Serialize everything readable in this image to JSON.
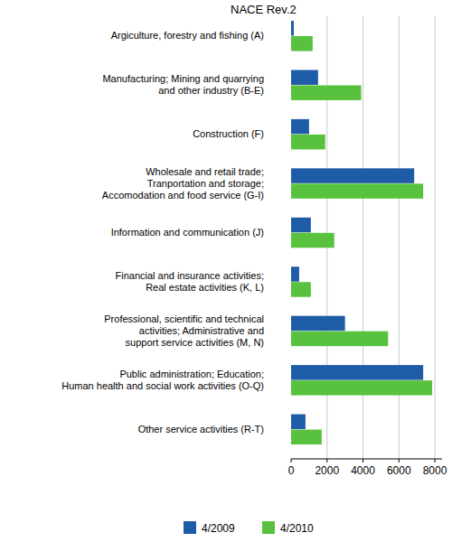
{
  "chart_data": {
    "type": "bar",
    "orientation": "horizontal",
    "ylabel": "NACE Rev.2",
    "categories": [
      "Argiculture, forestry and fishing (A)",
      "Manufacturing; Mining and quarrying\nand other industry (B-E)",
      "Construction (F)",
      "Wholesale and retail trade;\nTranportation and storage;\nAccomodation and food service (G-I)",
      "Information and communication (J)",
      "Financial and insurance activities;\nReal estate activities (K, L)",
      "Professional, scientific and technical\nactivities; Administrative and\nsupport service activities (M, N)",
      "Public administration; Education;\nHuman health and social work activities (O-Q)",
      "Other service activities (R-T)"
    ],
    "series": [
      {
        "name": "4/2009",
        "color": "#1f5ca8",
        "values": [
          150,
          1500,
          1000,
          6850,
          1100,
          450,
          3000,
          7350,
          800
        ]
      },
      {
        "name": "4/2010",
        "color": "#58c23e",
        "values": [
          1200,
          3900,
          1900,
          7350,
          2400,
          1100,
          5400,
          7850,
          1700
        ]
      }
    ],
    "xlim": [
      0,
      8400
    ],
    "xticks": [
      0,
      2000,
      4000,
      6000,
      8000
    ],
    "grid": true,
    "legend": "bottom"
  }
}
